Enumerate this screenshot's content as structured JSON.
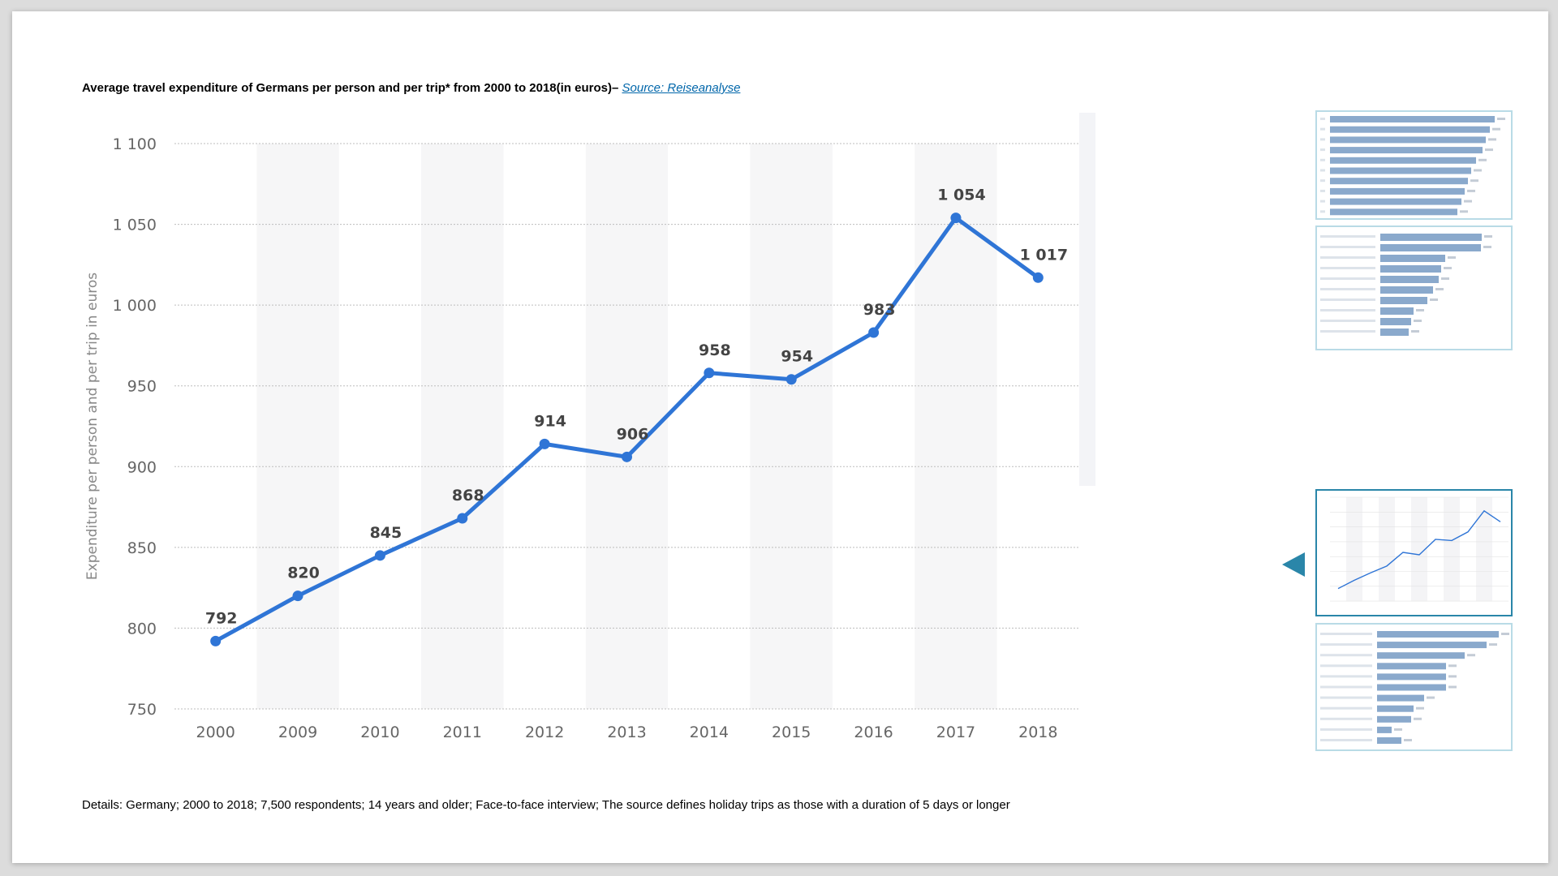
{
  "header": {
    "title": "Average travel expenditure of Germans per person and per trip* from 2000 to 2018(in euros)– ",
    "source_link": "Source: Reiseanalyse"
  },
  "details": "Details: Germany; 2000 to 2018; 7,500 respondents; 14 years and older; Face-to-face interview; The source defines holiday trips as those with a duration of 5 days or longer",
  "colors": {
    "line": "#2f75d6",
    "band": "#f6f6f7",
    "grid": "#bdbdbd",
    "thumb_border": "#b9dbe6",
    "thumb_active": "#2a86a9",
    "thumb_bar": "#8aa9cc"
  },
  "thumbnails": {
    "arrow_icon": "triangle-left-icon",
    "items": [
      "thumbnail-bar-chart-1",
      "thumbnail-bar-chart-2",
      "thumbnail-line-chart-active",
      "thumbnail-bar-chart-3"
    ]
  },
  "chart_data": {
    "type": "line",
    "title": "",
    "xlabel": "",
    "ylabel": "Expenditure per person and per trip in euros",
    "categories": [
      "2000",
      "2009",
      "2010",
      "2011",
      "2012",
      "2013",
      "2014",
      "2015",
      "2016",
      "2017",
      "2018"
    ],
    "series": [
      {
        "name": "",
        "values": [
          792,
          820,
          845,
          868,
          914,
          906,
          958,
          954,
          983,
          1054,
          1017
        ]
      }
    ],
    "data_labels": [
      "792",
      "820",
      "845",
      "868",
      "914",
      "906",
      "958",
      "954",
      "983",
      "1 054",
      "1 017"
    ],
    "yticks": [
      750,
      800,
      850,
      900,
      950,
      1000,
      1050,
      1100
    ],
    "ytick_labels": [
      "750",
      "800",
      "850",
      "900",
      "950",
      "1 000",
      "1 050",
      "1 100"
    ],
    "ylim": [
      750,
      1100
    ],
    "grid": true,
    "legend": "none"
  }
}
